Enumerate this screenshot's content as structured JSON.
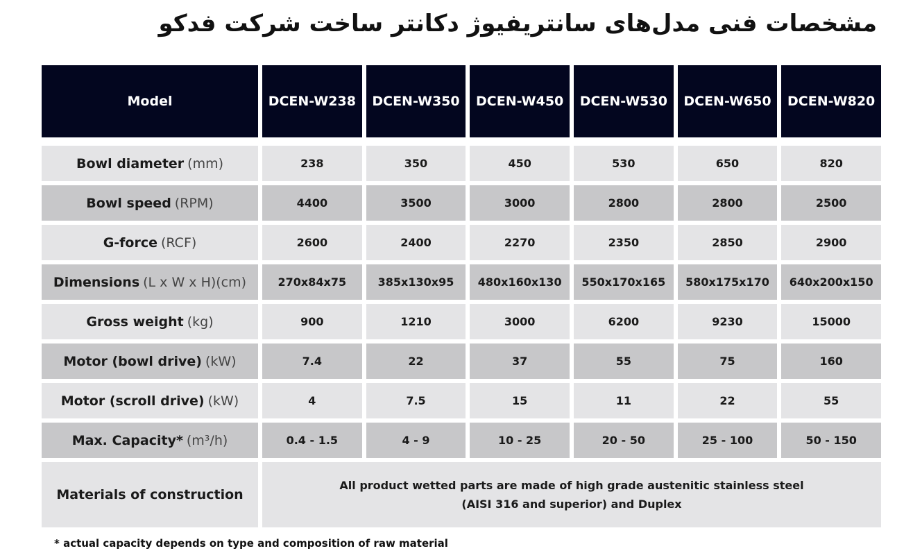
{
  "title": "مشخصات فنی مدل‌های سانتریفیوژ دکانتر ساخت شرکت فدکو",
  "header": {
    "label": "Model",
    "models": [
      "DCEN-W238",
      "DCEN-W350",
      "DCEN-W450",
      "DCEN-W530",
      "DCEN-W650",
      "DCEN-W820"
    ]
  },
  "rows": [
    {
      "label": "Bowl diameter",
      "unit": "(mm)",
      "values": [
        "238",
        "350",
        "450",
        "530",
        "650",
        "820"
      ]
    },
    {
      "label": "Bowl speed",
      "unit": "(RPM)",
      "values": [
        "4400",
        "3500",
        "3000",
        "2800",
        "2800",
        "2500"
      ]
    },
    {
      "label": "G-force",
      "unit": "(RCF)",
      "values": [
        "2600",
        "2400",
        "2270",
        "2350",
        "2850",
        "2900"
      ]
    },
    {
      "label": "Dimensions",
      "unit": "(L x W x H)(cm)",
      "values": [
        "270x84x75",
        "385x130x95",
        "480x160x130",
        "550x170x165",
        "580x175x170",
        "640x200x150"
      ]
    },
    {
      "label": "Gross weight",
      "unit": "(kg)",
      "values": [
        "900",
        "1210",
        "3000",
        "6200",
        "9230",
        "15000"
      ]
    },
    {
      "label": "Motor (bowl drive)",
      "unit": "(kW)",
      "values": [
        "7.4",
        "22",
        "37",
        "55",
        "75",
        "160"
      ]
    },
    {
      "label": "Motor (scroll drive)",
      "unit": "(kW)",
      "values": [
        "4",
        "7.5",
        "15",
        "11",
        "22",
        "55"
      ]
    },
    {
      "label": "Max. Capacity*",
      "unit": "(m³/h)",
      "values": [
        "0.4 - 1.5",
        "4 - 9",
        "10 - 25",
        "20 - 50",
        "25 - 100",
        "50 - 150"
      ]
    }
  ],
  "materials": {
    "label": "Materials of construction",
    "line1": "All product wetted parts are made of high grade austenitic stainless steel",
    "line2": "(AISI 316 and superior) and Duplex"
  },
  "footnote": "* actual capacity depends on type and composition of raw material",
  "colors": {
    "header_bg": "#03061f",
    "row_light": "#e4e4e6",
    "row_dark": "#c7c7c9"
  }
}
